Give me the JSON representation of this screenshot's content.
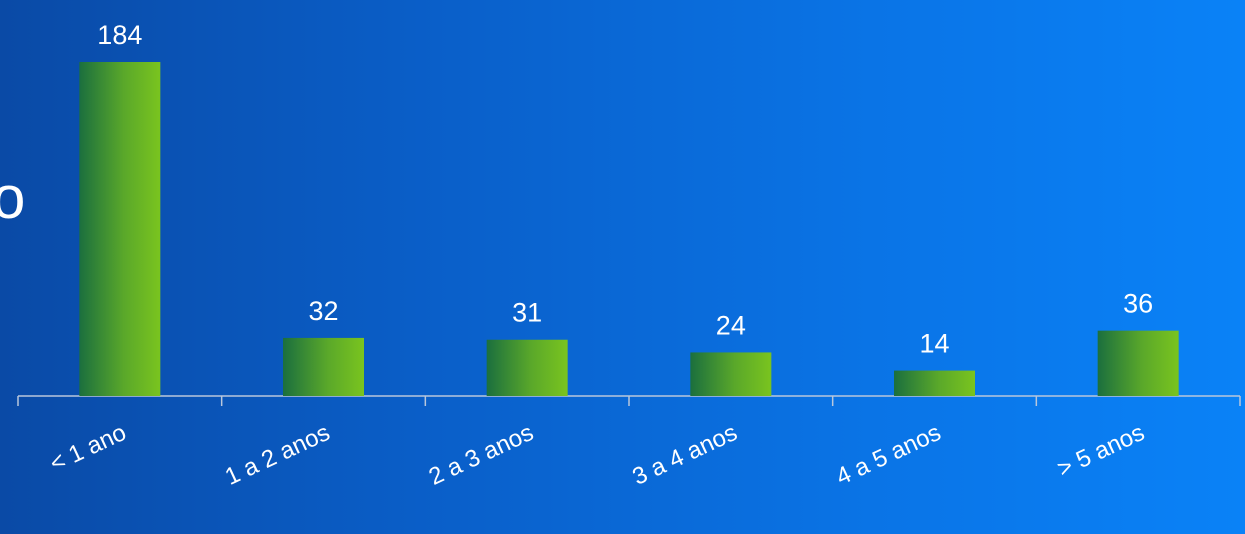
{
  "page": {
    "cropped_text": "o"
  },
  "chart_data": {
    "type": "bar",
    "categories": [
      "< 1 ano",
      "1 a 2 anos",
      "2 a 3 anos",
      "3 a 4 anos",
      "4 a 5 anos",
      "> 5 anos"
    ],
    "values": [
      184,
      32,
      31,
      24,
      14,
      36
    ],
    "title": "",
    "xlabel": "",
    "ylabel": "",
    "ylim": [
      0,
      184
    ],
    "grid": false,
    "legend": "none",
    "colors": {
      "bar_dark": "#1b6f3e",
      "bar_light": "#7ac41f",
      "axis": "#b9c7dc",
      "text": "#ffffff"
    }
  }
}
